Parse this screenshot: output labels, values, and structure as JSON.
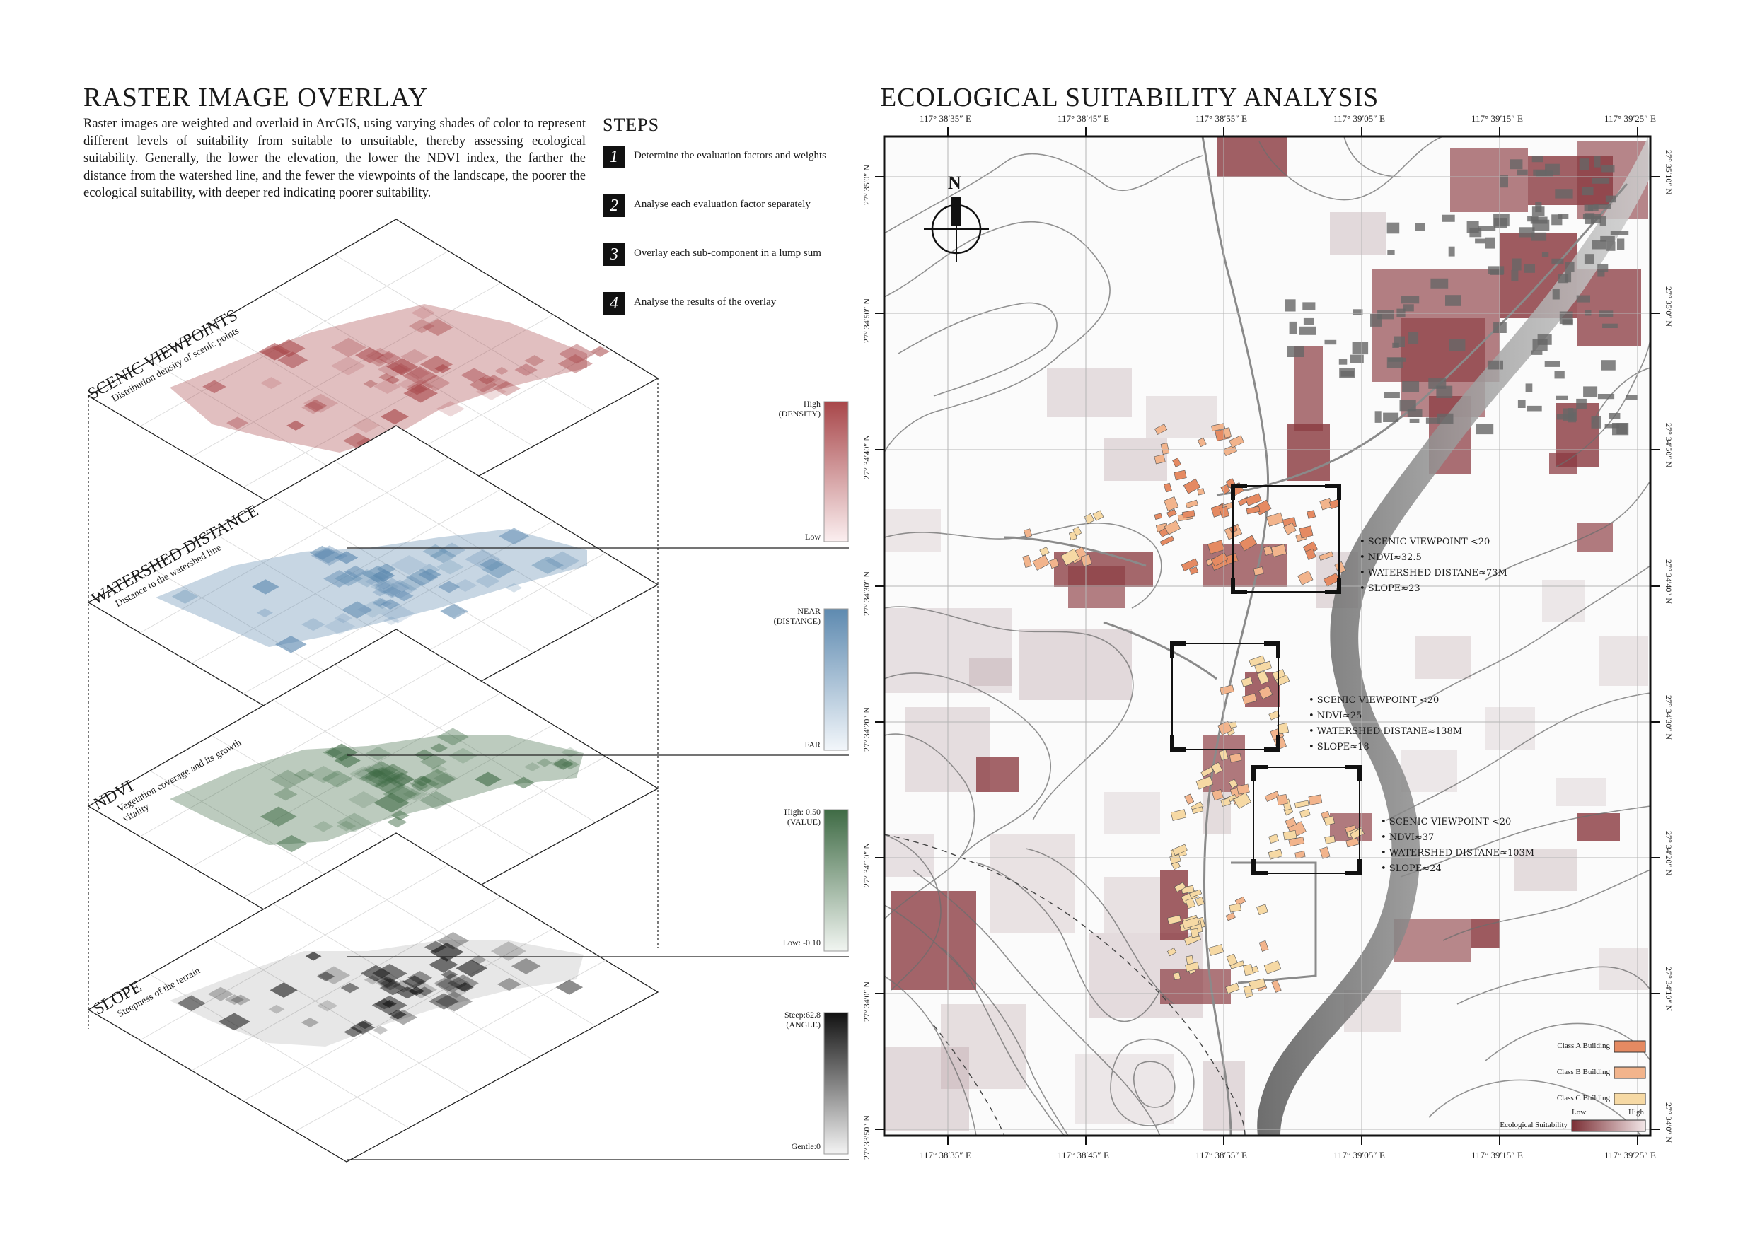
{
  "left": {
    "title": "RASTER IMAGE OVERLAY",
    "description": "Raster images are weighted and overlaid in ArcGIS, using varying shades of color to represent different levels of suitability from suitable to unsuitable, thereby assessing ecological suitability. Generally, the lower the elevation, the lower the NDVI index, the farther the distance from the watershed line, and the fewer the viewpoints of the landscape, the poorer the ecological suitability, with deeper red indicating poorer suitability."
  },
  "steps": {
    "heading": "STEPS",
    "items": [
      {
        "num": "1",
        "text": "Determine the evaluation factors and weights"
      },
      {
        "num": "2",
        "text": "Analyse each evaluation factor separately"
      },
      {
        "num": "3",
        "text": "Overlay each sub-component in a lump sum"
      },
      {
        "num": "4",
        "text": "Analyse the results of the overlay"
      }
    ]
  },
  "layers": [
    {
      "title": "SCENIC VIEWPOINTS",
      "subtitle": "Distribution density of scenic points",
      "legend_high": "High",
      "legend_high2": "(DENSITY)",
      "legend_low": "Low",
      "color": "#a8474a"
    },
    {
      "title": "WATERSHED DISTANCE",
      "subtitle": "Distance to the watershed line",
      "legend_high": "NEAR",
      "legend_high2": "(DISTANCE)",
      "legend_low": "FAR",
      "color": "#5e8ab0"
    },
    {
      "title": "NDVI",
      "subtitle": "Vegetation coverage and its growth vitality",
      "legend_high": "High: 0.50",
      "legend_high2": "(VALUE)",
      "legend_low": "Low: -0.10",
      "color": "#3f6b45"
    },
    {
      "title": "SLOPE",
      "subtitle": "Steepness of the terrain",
      "legend_high": "Steep:62.8",
      "legend_high2": "(ANGLE)",
      "legend_low": "Gentle:0",
      "color": "#111111"
    }
  ],
  "map": {
    "title": "ECOLOGICAL SUITABILITY ANALYSIS",
    "lon_labels": [
      "117° 38′35″ E",
      "117° 38′45″ E",
      "117° 38′55″ E",
      "117° 39′05″ E",
      "117° 39′15″ E",
      "117° 39′25″ E"
    ],
    "lat_labels": [
      "27° 35′0″ N",
      "27° 34′50″ N",
      "27° 34′40″ N",
      "27° 34′30″ N",
      "27° 34′20″ N",
      "27° 34′10″ N",
      "27° 34′0″ N",
      "27° 33′50″ N"
    ],
    "lat_labels_right": [
      "27° 35′10″ N",
      "27° 35′0″ N",
      "27° 34′50″ N",
      "27° 34′40″ N",
      "27° 34′30″ N",
      "27° 34′20″ N",
      "27° 34′10″ N",
      "27° 34′0″ N"
    ],
    "north": "N",
    "annotations": [
      {
        "lines": [
          "• SCENIC VIEWPOINT <20",
          "• NDVI≈32.5",
          "• WATERSHED DISTANE≈73M",
          "• SLOPE≈23"
        ]
      },
      {
        "lines": [
          "• SCENIC VIEWPOINT <20",
          "• NDVI≈25",
          "• WATERSHED DISTANE≈138M",
          "• SLOPE≈18"
        ]
      },
      {
        "lines": [
          "• SCENIC VIEWPOINT <20",
          "• NDVI≈37",
          "• WATERSHED DISTANE≈103M",
          "• SLOPE≈24"
        ]
      }
    ],
    "legend": {
      "class_a": "Class A Building",
      "class_b": "Class B Building",
      "class_c": "Class C Building",
      "suitability": "Ecological Suitability",
      "low": "Low",
      "high": "High",
      "class_a_color": "#e58a62",
      "class_b_color": "#f2b48c",
      "class_c_color": "#f6d9a4"
    }
  }
}
